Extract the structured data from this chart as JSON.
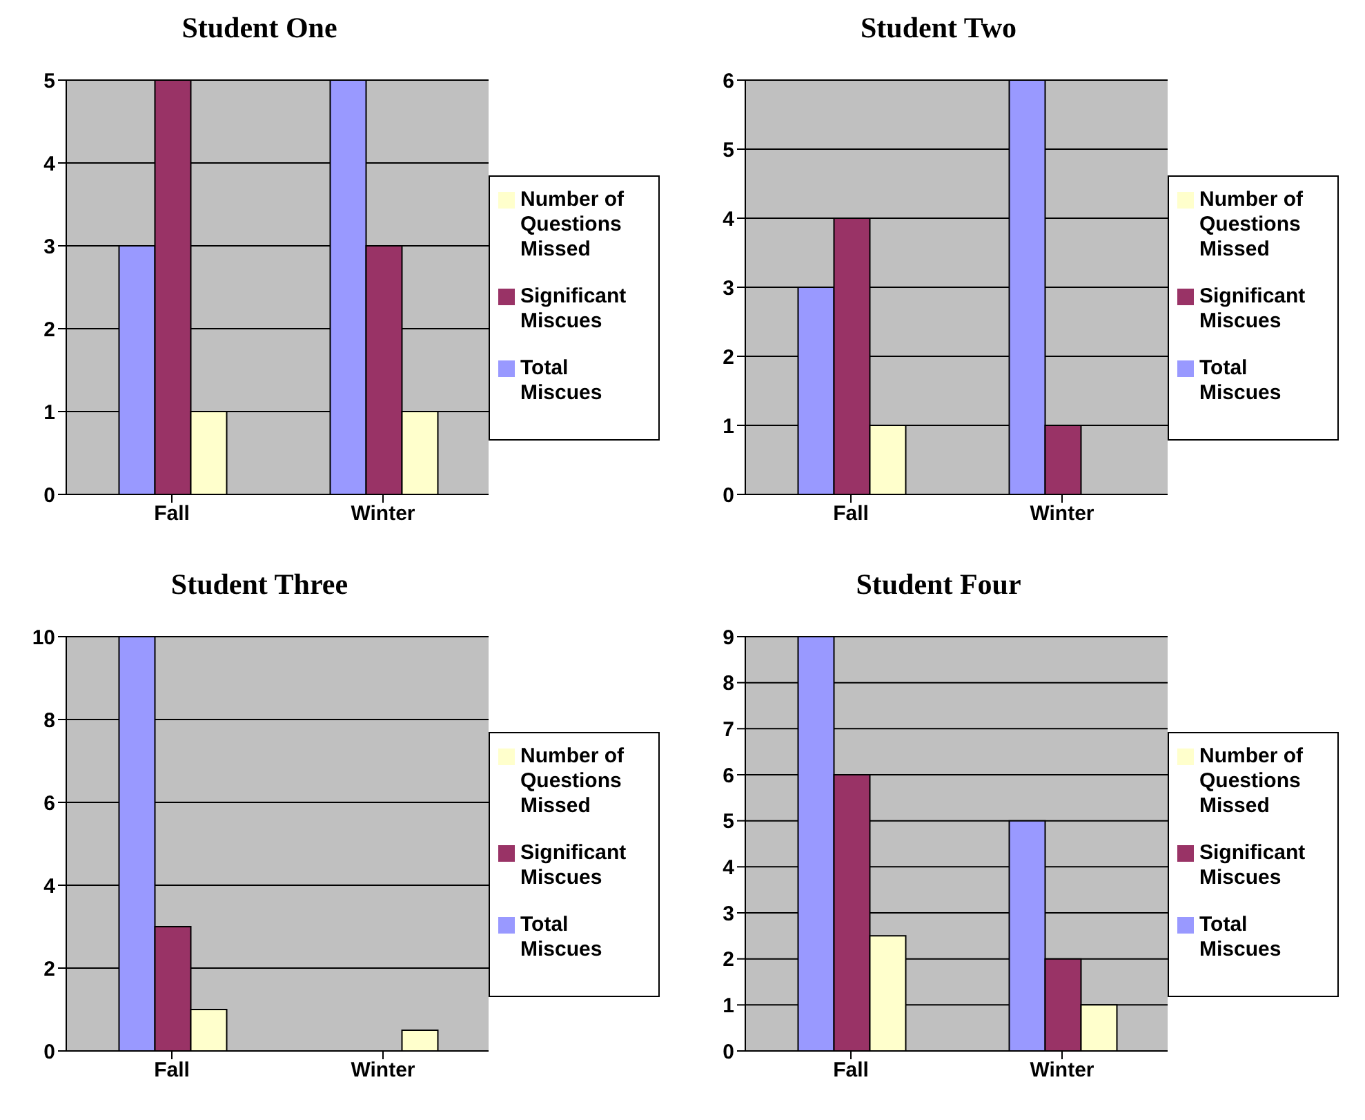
{
  "chart_data": [
    {
      "type": "bar",
      "title": "Student One",
      "categories": [
        "Fall",
        "Winter"
      ],
      "series": [
        {
          "name": "Total Miscues",
          "color": "#9999ff",
          "values": [
            3,
            5
          ]
        },
        {
          "name": "Significant Miscues",
          "color": "#993366",
          "values": [
            5,
            3
          ]
        },
        {
          "name": "Number of Questions Missed",
          "color": "#ffffcc",
          "values": [
            1,
            1
          ]
        }
      ],
      "ylim": [
        0,
        5
      ],
      "yticks": [
        0,
        1,
        2,
        3,
        4,
        5
      ],
      "grid": "y",
      "legend": "right"
    },
    {
      "type": "bar",
      "title": "Student Two",
      "categories": [
        "Fall",
        "Winter"
      ],
      "series": [
        {
          "name": "Total Miscues",
          "color": "#9999ff",
          "values": [
            3,
            6
          ]
        },
        {
          "name": "Significant Miscues",
          "color": "#993366",
          "values": [
            4,
            1
          ]
        },
        {
          "name": "Number of Questions Missed",
          "color": "#ffffcc",
          "values": [
            1,
            0
          ]
        }
      ],
      "ylim": [
        0,
        6
      ],
      "yticks": [
        0,
        1,
        2,
        3,
        4,
        5,
        6
      ],
      "grid": "y",
      "legend": "right"
    },
    {
      "type": "bar",
      "title": "Student Three",
      "categories": [
        "Fall",
        "Winter"
      ],
      "series": [
        {
          "name": "Total Miscues",
          "color": "#9999ff",
          "values": [
            10,
            0
          ]
        },
        {
          "name": "Significant Miscues",
          "color": "#993366",
          "values": [
            3,
            0
          ]
        },
        {
          "name": "Number of Questions Missed",
          "color": "#ffffcc",
          "values": [
            1,
            0.5
          ]
        }
      ],
      "ylim": [
        0,
        10
      ],
      "yticks": [
        0,
        2,
        4,
        6,
        8,
        10
      ],
      "grid": "y",
      "legend": "right"
    },
    {
      "type": "bar",
      "title": "Student Four",
      "categories": [
        "Fall",
        "Winter"
      ],
      "series": [
        {
          "name": "Total Miscues",
          "color": "#9999ff",
          "values": [
            9,
            5
          ]
        },
        {
          "name": "Significant Miscues",
          "color": "#993366",
          "values": [
            6,
            2
          ]
        },
        {
          "name": "Number of Questions Missed",
          "color": "#ffffcc",
          "values": [
            2.5,
            1
          ]
        }
      ],
      "ylim": [
        0,
        9
      ],
      "yticks": [
        0,
        1,
        2,
        3,
        4,
        5,
        6,
        7,
        8,
        9
      ],
      "grid": "y",
      "legend": "right"
    }
  ]
}
